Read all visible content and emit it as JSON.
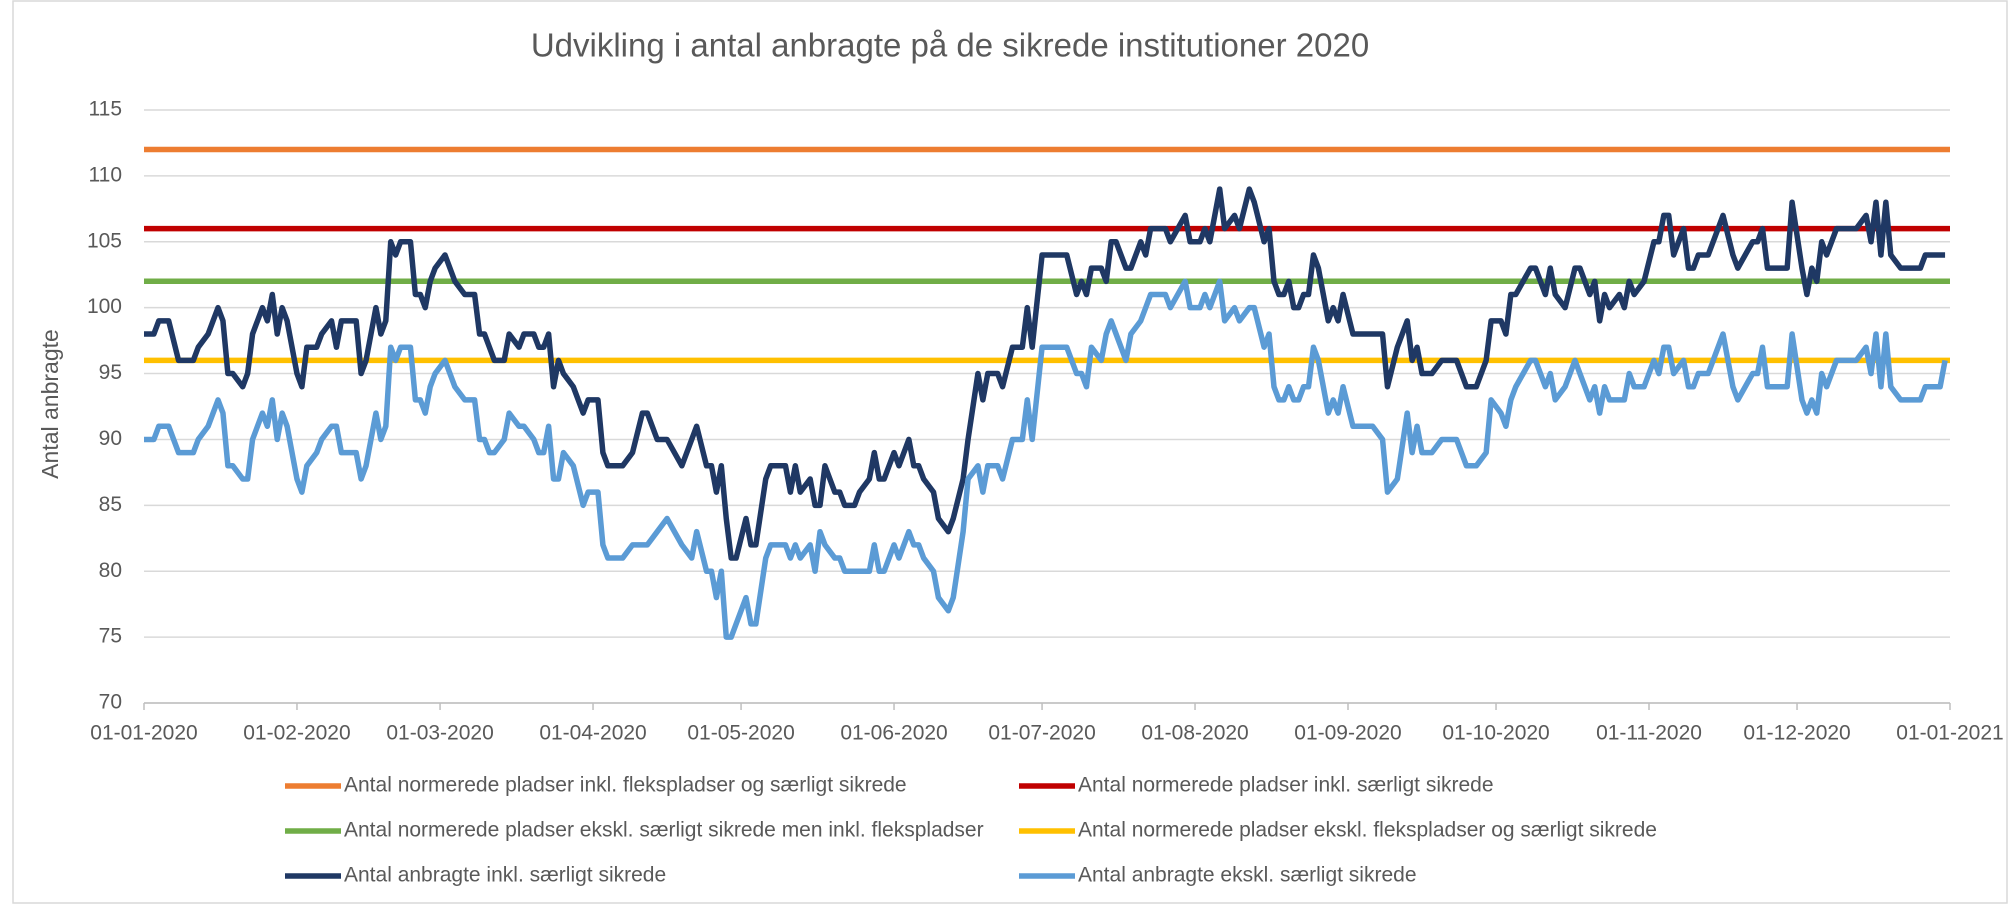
{
  "chart_data": {
    "type": "line",
    "title": "Udvikling i antal anbragte på de sikrede institutioner 2020",
    "y_label": "Antal anbragte",
    "xlim": [
      "01-01-2020",
      "01-01-2021"
    ],
    "xticks": [
      "01-01-2020",
      "01-02-2020",
      "01-03-2020",
      "01-04-2020",
      "01-05-2020",
      "01-06-2020",
      "01-07-2020",
      "01-08-2020",
      "01-09-2020",
      "01-10-2020",
      "01-11-2020",
      "01-12-2020",
      "01-01-2021"
    ],
    "ylim": [
      70,
      115
    ],
    "yticks": [
      70,
      75,
      80,
      85,
      90,
      95,
      100,
      105,
      110,
      115
    ],
    "grid": true,
    "legend": "bottom",
    "x": [
      "01-01-2020",
      "03-01-2020",
      "04-01-2020",
      "06-01-2020",
      "08-01-2020",
      "11-01-2020",
      "12-01-2020",
      "14-01-2020",
      "16-01-2020",
      "17-01-2020",
      "18-01-2020",
      "19-01-2020",
      "21-01-2020",
      "22-01-2020",
      "23-01-2020",
      "25-01-2020",
      "26-01-2020",
      "27-01-2020",
      "28-01-2020",
      "29-01-2020",
      "30-01-2020",
      "01-02-2020",
      "02-02-2020",
      "03-02-2020",
      "05-02-2020",
      "06-02-2020",
      "08-02-2020",
      "09-02-2020",
      "10-02-2020",
      "13-02-2020",
      "14-02-2020",
      "15-02-2020",
      "17-02-2020",
      "18-02-2020",
      "19-02-2020",
      "20-02-2020",
      "21-02-2020",
      "22-02-2020",
      "24-02-2020",
      "25-02-2020",
      "26-02-2020",
      "27-02-2020",
      "28-02-2020",
      "29-02-2020",
      "02-03-2020",
      "04-03-2020",
      "06-03-2020",
      "08-03-2020",
      "09-03-2020",
      "10-03-2020",
      "11-03-2020",
      "12-03-2020",
      "14-03-2020",
      "15-03-2020",
      "17-03-2020",
      "18-03-2020",
      "20-03-2020",
      "21-03-2020",
      "22-03-2020",
      "23-03-2020",
      "24-03-2020",
      "25-03-2020",
      "26-03-2020",
      "28-03-2020",
      "30-03-2020",
      "31-03-2020",
      "02-04-2020",
      "03-04-2020",
      "04-04-2020",
      "07-04-2020",
      "09-04-2020",
      "11-04-2020",
      "12-04-2020",
      "14-04-2020",
      "16-04-2020",
      "19-04-2020",
      "21-04-2020",
      "22-04-2020",
      "24-04-2020",
      "25-04-2020",
      "26-04-2020",
      "27-04-2020",
      "28-04-2020",
      "29-04-2020",
      "30-04-2020",
      "02-05-2020",
      "03-05-2020",
      "04-05-2020",
      "06-05-2020",
      "07-05-2020",
      "10-05-2020",
      "11-05-2020",
      "12-05-2020",
      "13-05-2020",
      "15-05-2020",
      "16-05-2020",
      "17-05-2020",
      "18-05-2020",
      "20-05-2020",
      "21-05-2020",
      "22-05-2020",
      "24-05-2020",
      "25-05-2020",
      "27-05-2020",
      "28-05-2020",
      "29-05-2020",
      "30-05-2020",
      "01-06-2020",
      "02-06-2020",
      "04-06-2020",
      "05-06-2020",
      "06-06-2020",
      "07-06-2020",
      "09-06-2020",
      "10-06-2020",
      "12-06-2020",
      "13-06-2020",
      "15-06-2020",
      "16-06-2020",
      "18-06-2020",
      "19-06-2020",
      "20-06-2020",
      "22-06-2020",
      "23-06-2020",
      "25-06-2020",
      "27-06-2020",
      "28-06-2020",
      "29-06-2020",
      "01-07-2020",
      "06-07-2020",
      "08-07-2020",
      "09-07-2020",
      "10-07-2020",
      "11-07-2020",
      "13-07-2020",
      "14-07-2020",
      "15-07-2020",
      "16-07-2020",
      "18-07-2020",
      "19-07-2020",
      "21-07-2020",
      "22-07-2020",
      "23-07-2020",
      "26-07-2020",
      "27-07-2020",
      "30-07-2020",
      "31-07-2020",
      "02-08-2020",
      "03-08-2020",
      "04-08-2020",
      "06-08-2020",
      "07-08-2020",
      "09-08-2020",
      "10-08-2020",
      "12-08-2020",
      "13-08-2020",
      "15-08-2020",
      "16-08-2020",
      "17-08-2020",
      "18-08-2020",
      "19-08-2020",
      "20-08-2020",
      "21-08-2020",
      "22-08-2020",
      "23-08-2020",
      "24-08-2020",
      "25-08-2020",
      "26-08-2020",
      "28-08-2020",
      "29-08-2020",
      "30-08-2020",
      "31-08-2020",
      "02-09-2020",
      "06-09-2020",
      "08-09-2020",
      "09-09-2020",
      "11-09-2020",
      "13-09-2020",
      "14-09-2020",
      "15-09-2020",
      "16-09-2020",
      "18-09-2020",
      "20-09-2020",
      "23-09-2020",
      "25-09-2020",
      "27-09-2020",
      "29-09-2020",
      "30-09-2020",
      "02-10-2020",
      "03-10-2020",
      "04-10-2020",
      "05-10-2020",
      "08-10-2020",
      "09-10-2020",
      "11-10-2020",
      "12-10-2020",
      "13-10-2020",
      "15-10-2020",
      "17-10-2020",
      "18-10-2020",
      "20-10-2020",
      "21-10-2020",
      "22-10-2020",
      "23-10-2020",
      "24-10-2020",
      "26-10-2020",
      "27-10-2020",
      "28-10-2020",
      "29-10-2020",
      "31-10-2020",
      "02-11-2020",
      "03-11-2020",
      "04-11-2020",
      "05-11-2020",
      "06-11-2020",
      "08-11-2020",
      "09-11-2020",
      "10-11-2020",
      "11-11-2020",
      "13-11-2020",
      "16-11-2020",
      "18-11-2020",
      "19-11-2020",
      "22-11-2020",
      "23-11-2020",
      "24-11-2020",
      "25-11-2020",
      "29-11-2020",
      "30-11-2020",
      "02-12-2020",
      "03-12-2020",
      "04-12-2020",
      "05-12-2020",
      "06-12-2020",
      "07-12-2020",
      "09-12-2020",
      "12-12-2020",
      "13-12-2020",
      "15-12-2020",
      "16-12-2020",
      "17-12-2020",
      "18-12-2020",
      "19-12-2020",
      "20-12-2020",
      "22-12-2020",
      "26-12-2020",
      "27-12-2020",
      "30-12-2020",
      "31-12-2020"
    ],
    "series": [
      {
        "name": "Antal normerede pladser inkl. flekspladser og særligt sikrede",
        "color": "#ED7D31",
        "x": [
          "01-01-2020",
          "01-01-2021"
        ],
        "values": [
          112,
          112
        ]
      },
      {
        "name": "Antal normerede pladser inkl. særligt sikrede",
        "color": "#C00000",
        "x": [
          "01-01-2020",
          "01-01-2021"
        ],
        "values": [
          106,
          106
        ]
      },
      {
        "name": "Antal normerede pladser ekskl. særligt sikrede men inkl. flekspladser",
        "color": "#70AD47",
        "x": [
          "01-01-2020",
          "01-01-2021"
        ],
        "values": [
          102,
          102
        ]
      },
      {
        "name": "Antal normerede pladser ekskl. flekspladser og særligt sikrede",
        "color": "#FFC000",
        "x": [
          "01-01-2020",
          "01-01-2021"
        ],
        "values": [
          96,
          96
        ]
      },
      {
        "name": "Antal anbragte inkl. særligt sikrede",
        "color": "#1F3864",
        "values": [
          98,
          98,
          99,
          99,
          96,
          96,
          97,
          98,
          100,
          99,
          95,
          95,
          94,
          95,
          98,
          100,
          99,
          101,
          98,
          100,
          99,
          95,
          94,
          97,
          97,
          98,
          99,
          97,
          99,
          99,
          95,
          96,
          100,
          98,
          99,
          105,
          104,
          105,
          105,
          101,
          101,
          100,
          102,
          103,
          104,
          102,
          101,
          101,
          98,
          98,
          97,
          96,
          96,
          98,
          97,
          98,
          98,
          97,
          97,
          98,
          94,
          96,
          95,
          94,
          92,
          93,
          93,
          89,
          88,
          88,
          89,
          92,
          92,
          90,
          90,
          88,
          90,
          91,
          88,
          88,
          86,
          88,
          84,
          81,
          81,
          84,
          82,
          82,
          87,
          88,
          88,
          86,
          88,
          86,
          87,
          85,
          85,
          88,
          86,
          86,
          85,
          85,
          86,
          87,
          89,
          87,
          87,
          89,
          88,
          90,
          88,
          88,
          87,
          86,
          84,
          83,
          84,
          87,
          90,
          95,
          93,
          95,
          95,
          94,
          97,
          97,
          100,
          97,
          104,
          104,
          101,
          102,
          101,
          103,
          103,
          102,
          105,
          105,
          103,
          103,
          105,
          104,
          106,
          106,
          105,
          107,
          105,
          105,
          106,
          105,
          109,
          106,
          107,
          106,
          109,
          108,
          105,
          106,
          102,
          101,
          101,
          102,
          100,
          100,
          101,
          101,
          104,
          103,
          99,
          100,
          99,
          101,
          98,
          98,
          98,
          94,
          97,
          99,
          96,
          97,
          95,
          95,
          96,
          96,
          94,
          94,
          96,
          99,
          99,
          98,
          101,
          101,
          103,
          103,
          101,
          103,
          101,
          100,
          103,
          103,
          101,
          102,
          99,
          101,
          100,
          101,
          100,
          102,
          101,
          102,
          105,
          105,
          107,
          107,
          104,
          106,
          103,
          103,
          104,
          104,
          107,
          104,
          103,
          105,
          105,
          106,
          103,
          103,
          108,
          103,
          101,
          103,
          102,
          105,
          104,
          106,
          106,
          106,
          107,
          105,
          108,
          104,
          108,
          104,
          103,
          103,
          104,
          104,
          104
        ]
      },
      {
        "name": "Antal anbragte ekskl. særligt sikrede",
        "color": "#5B9BD5",
        "values": [
          90,
          90,
          91,
          91,
          89,
          89,
          90,
          91,
          93,
          92,
          88,
          88,
          87,
          87,
          90,
          92,
          91,
          93,
          90,
          92,
          91,
          87,
          86,
          88,
          89,
          90,
          91,
          91,
          89,
          89,
          87,
          88,
          92,
          90,
          91,
          97,
          96,
          97,
          97,
          93,
          93,
          92,
          94,
          95,
          96,
          94,
          93,
          93,
          90,
          90,
          89,
          89,
          90,
          92,
          91,
          91,
          90,
          89,
          89,
          91,
          87,
          87,
          89,
          88,
          85,
          86,
          86,
          82,
          81,
          81,
          82,
          82,
          82,
          83,
          84,
          82,
          81,
          83,
          80,
          80,
          78,
          80,
          75,
          75,
          76,
          78,
          76,
          76,
          81,
          82,
          82,
          81,
          82,
          81,
          82,
          80,
          83,
          82,
          81,
          81,
          80,
          80,
          80,
          80,
          82,
          80,
          80,
          82,
          81,
          83,
          82,
          82,
          81,
          80,
          78,
          77,
          78,
          83,
          87,
          88,
          86,
          88,
          88,
          87,
          90,
          90,
          93,
          90,
          97,
          97,
          95,
          95,
          94,
          97,
          96,
          98,
          99,
          98,
          96,
          98,
          99,
          100,
          101,
          101,
          100,
          102,
          100,
          100,
          101,
          100,
          102,
          99,
          100,
          99,
          100,
          100,
          97,
          98,
          94,
          93,
          93,
          94,
          93,
          93,
          94,
          94,
          97,
          96,
          92,
          93,
          92,
          94,
          91,
          91,
          90,
          86,
          87,
          92,
          89,
          91,
          89,
          89,
          90,
          90,
          88,
          88,
          89,
          93,
          92,
          91,
          93,
          94,
          96,
          96,
          94,
          95,
          93,
          94,
          96,
          95,
          93,
          94,
          92,
          94,
          93,
          93,
          93,
          95,
          94,
          94,
          96,
          95,
          97,
          97,
          95,
          96,
          94,
          94,
          95,
          95,
          98,
          94,
          93,
          95,
          95,
          97,
          94,
          94,
          98,
          93,
          92,
          93,
          92,
          95,
          94,
          96,
          96,
          96,
          97,
          95,
          98,
          94,
          98,
          94,
          93,
          93,
          94,
          94,
          96
        ]
      }
    ]
  }
}
